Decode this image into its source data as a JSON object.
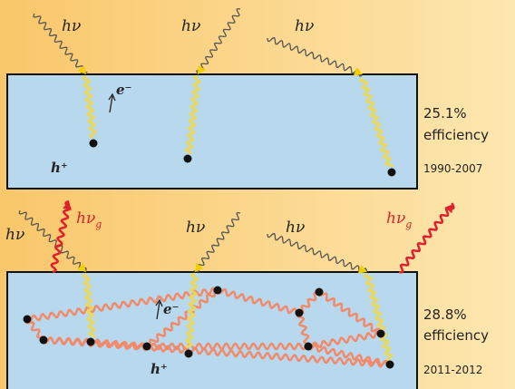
{
  "top_panel": {
    "photons": [
      "hν",
      "hν",
      "hν"
    ],
    "electron": "e⁻",
    "hole": "h⁺",
    "efficiency_value": "25.1%",
    "efficiency_label": "efficiency",
    "years": "1990-2007"
  },
  "bottom_panel": {
    "photons": [
      "hν",
      "hν",
      "hν"
    ],
    "emitted_photons": [
      {
        "label": "hν",
        "subscript": "g"
      },
      {
        "label": "hν",
        "subscript": "g"
      }
    ],
    "electron": "e⁻",
    "hole": "h⁺",
    "efficiency_value": "28.8%",
    "efficiency_label": "efficiency",
    "years": "2011-2012"
  }
}
